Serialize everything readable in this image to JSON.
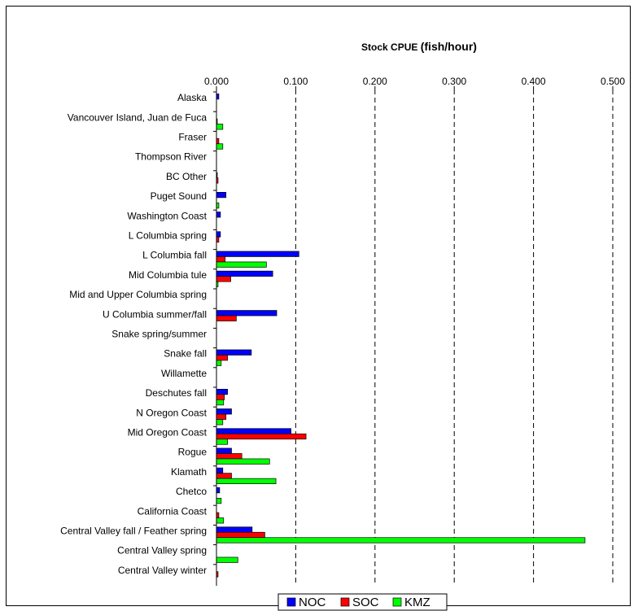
{
  "chart_data": {
    "type": "bar",
    "orientation": "horizontal",
    "title_prefix": "Stock CPUE ",
    "title_suffix": "(fish/hour)",
    "xlabel": "",
    "ylabel": "",
    "xlim": [
      0,
      0.5
    ],
    "x_ticks": [
      "0.000",
      "0.100",
      "0.200",
      "0.300",
      "0.400",
      "0.500"
    ],
    "x_tick_values": [
      0,
      0.1,
      0.2,
      0.3,
      0.4,
      0.5
    ],
    "x_axis_position": "top",
    "gridlines": "dashed vertical",
    "legend_position": "bottom-center",
    "categories": [
      "Alaska",
      "Vancouver Island, Juan de Fuca",
      "Fraser",
      "Thompson River",
      "BC Other",
      "Puget Sound",
      "Washington Coast",
      "L Columbia spring",
      "L Columbia fall",
      "Mid Columbia tule",
      "Mid and Upper Columbia spring",
      "U Columbia summer/fall",
      "Snake spring/summer",
      "Snake fall",
      "Willamette",
      "Deschutes fall",
      "N Oregon Coast",
      "Mid Oregon Coast",
      "Rogue",
      "Klamath",
      "Chetco",
      "California Coast",
      "Central Valley fall / Feather spring",
      "Central Valley spring",
      "Central Valley winter"
    ],
    "series": [
      {
        "name": "NOC",
        "color": "#0000ff",
        "values": [
          0.003,
          0.0,
          0.0,
          0.0,
          0.001,
          0.012,
          0.005,
          0.005,
          0.104,
          0.071,
          0.0,
          0.076,
          0.0,
          0.044,
          0.0,
          0.014,
          0.019,
          0.094,
          0.019,
          0.008,
          0.004,
          0.0,
          0.045,
          0.0,
          0.0
        ]
      },
      {
        "name": "SOC",
        "color": "#ff0000",
        "values": [
          0.0,
          0.001,
          0.003,
          0.0,
          0.002,
          0.0,
          0.0,
          0.003,
          0.011,
          0.018,
          0.0,
          0.025,
          0.0,
          0.014,
          0.0,
          0.01,
          0.012,
          0.113,
          0.032,
          0.019,
          0.0,
          0.003,
          0.061,
          0.0,
          0.002
        ]
      },
      {
        "name": "KMZ",
        "color": "#00ff00",
        "values": [
          0.0,
          0.008,
          0.008,
          0.0,
          0.0,
          0.003,
          0.0,
          0.0,
          0.063,
          0.002,
          0.0,
          0.0,
          0.0,
          0.006,
          0.0,
          0.009,
          0.008,
          0.014,
          0.067,
          0.075,
          0.006,
          0.009,
          0.465,
          0.027,
          0.0
        ]
      }
    ]
  }
}
